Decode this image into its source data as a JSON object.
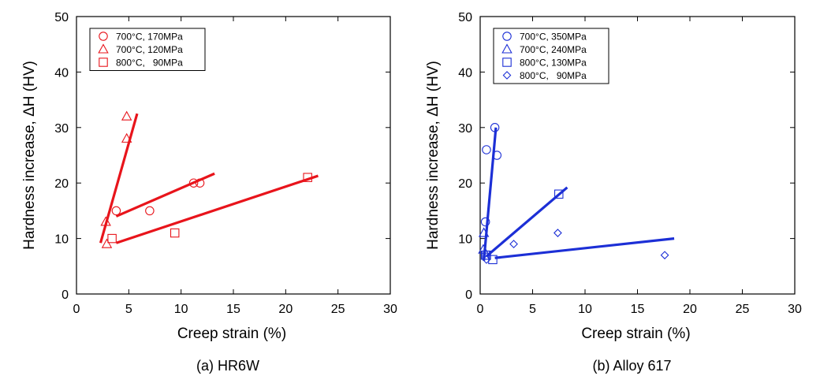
{
  "chart_data": [
    {
      "type": "scatter",
      "caption": "(a) HR6W",
      "xlabel": "Creep strain (%)",
      "ylabel": "Hardness increase, ΔH (HV)",
      "xlim": [
        0,
        30
      ],
      "ylim": [
        0,
        50
      ],
      "xticks": [
        "0",
        "5",
        "10",
        "15",
        "20",
        "25",
        "30"
      ],
      "yticks": [
        "0",
        "10",
        "20",
        "30",
        "40",
        "50"
      ],
      "color": "#e8141b",
      "legend_position": "top-left",
      "series": [
        {
          "name": "700°C, 170MPa",
          "marker": "circle",
          "points": [
            [
              3.8,
              15
            ],
            [
              7.0,
              15
            ],
            [
              11.2,
              20
            ],
            [
              11.8,
              20
            ]
          ],
          "fit": [
            [
              3.8,
              14
            ],
            [
              13.2,
              21.7
            ]
          ]
        },
        {
          "name": "700°C, 120MPa",
          "marker": "triangle",
          "points": [
            [
              2.9,
              9
            ],
            [
              2.8,
              13
            ],
            [
              4.8,
              28
            ],
            [
              4.8,
              32
            ]
          ],
          "fit": [
            [
              2.3,
              9.2
            ],
            [
              5.8,
              32.5
            ]
          ]
        },
        {
          "name": "800°C,   90MPa",
          "marker": "square",
          "points": [
            [
              3.4,
              10
            ],
            [
              9.4,
              11
            ],
            [
              22.1,
              21
            ]
          ],
          "fit": [
            [
              3.8,
              9.2
            ],
            [
              23.1,
              21.3
            ]
          ]
        }
      ]
    },
    {
      "type": "scatter",
      "caption": "(b) Alloy 617",
      "xlabel": "Creep strain (%)",
      "ylabel": "Hardness increase, ΔH (HV)",
      "xlim": [
        0,
        30
      ],
      "ylim": [
        0,
        50
      ],
      "xticks": [
        "0",
        "5",
        "10",
        "15",
        "20",
        "25",
        "30"
      ],
      "yticks": [
        "0",
        "10",
        "20",
        "30",
        "40",
        "50"
      ],
      "color": "#1c2fd6",
      "legend_position": "top-left",
      "series": [
        {
          "name": "700°C, 350MPa",
          "marker": "circle",
          "points": [
            [
              0.5,
              13
            ],
            [
              0.6,
              26
            ],
            [
              1.4,
              30
            ],
            [
              1.6,
              25
            ]
          ],
          "fit": [
            [
              0.35,
              6.0
            ],
            [
              1.5,
              30.0
            ]
          ]
        },
        {
          "name": "700°C, 240MPa",
          "marker": "triangle",
          "points": [
            [
              0.3,
              8
            ],
            [
              0.35,
              11
            ]
          ],
          "fit": null
        },
        {
          "name": "800°C, 130MPa",
          "marker": "square",
          "points": [
            [
              0.5,
              7
            ],
            [
              0.6,
              7
            ],
            [
              1.2,
              6.2
            ],
            [
              7.5,
              18
            ]
          ],
          "fit": [
            [
              0.6,
              6.8
            ],
            [
              8.3,
              19.2
            ]
          ]
        },
        {
          "name": "800°C,   90MPa",
          "marker": "diamond",
          "points": [
            [
              0.6,
              6.2
            ],
            [
              3.2,
              9
            ],
            [
              7.4,
              11
            ],
            [
              17.6,
              7
            ]
          ],
          "fit": [
            [
              1.4,
              6.5
            ],
            [
              18.5,
              10.0
            ]
          ]
        }
      ]
    }
  ]
}
